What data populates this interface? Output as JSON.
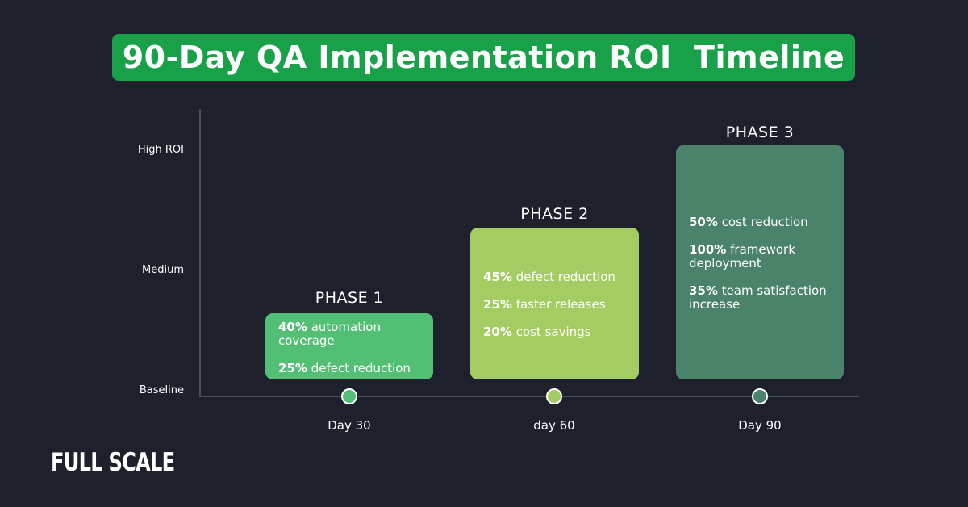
{
  "title": "90-Day QA Implementation ROI  Timeline",
  "y_levels": [
    "High ROI",
    "Medium",
    "Baseline"
  ],
  "phases": [
    {
      "title": "PHASE 1",
      "day": "Day 30",
      "color": "#52bf74",
      "items": [
        {
          "value": "40%",
          "text": "automation coverage"
        },
        {
          "value": "25%",
          "text": "defect reduction"
        }
      ]
    },
    {
      "title": "PHASE 2",
      "day": "day 60",
      "color": "#a3cd62",
      "items": [
        {
          "value": "45%",
          "text": "defect reduction"
        },
        {
          "value": "25%",
          "text": "faster releases"
        },
        {
          "value": "20%",
          "text": "cost savings"
        }
      ]
    },
    {
      "title": "PHASE 3",
      "day": "Day 90",
      "color": "#4a826a",
      "items": [
        {
          "value": "50%",
          "text": "cost reduction"
        },
        {
          "value": "100%",
          "text": "framework deployment"
        },
        {
          "value": "35%",
          "text": "team satisfaction increase"
        }
      ]
    }
  ],
  "logo": "FULL SCALE"
}
